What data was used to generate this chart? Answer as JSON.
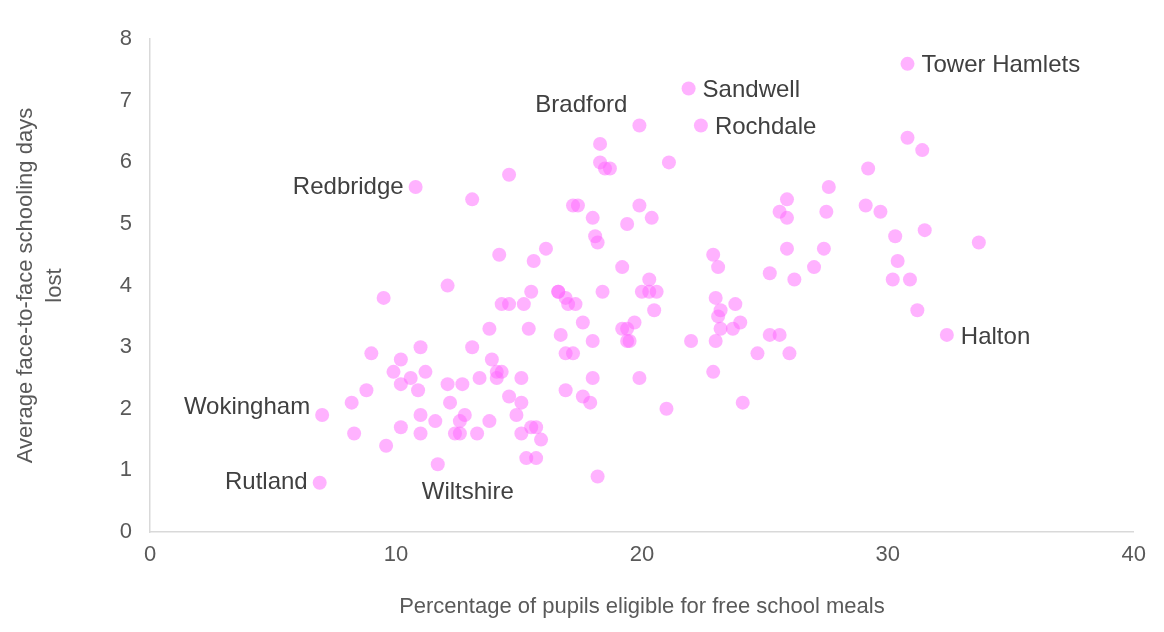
{
  "chart_data": {
    "type": "scatter",
    "xlabel": "Percentage of pupils eligible for free school meals",
    "ylabel": "Average face-to-face schooling days lost",
    "xlim": [
      0,
      40
    ],
    "xticks": [
      0,
      10,
      20,
      30,
      40
    ],
    "ylim": [
      0,
      8
    ],
    "yticks": [
      0,
      1,
      2,
      3,
      4,
      5,
      6,
      7,
      8
    ],
    "grid": false,
    "legend": false,
    "marker": "circle",
    "series": [
      {
        "color": "#ff66ff",
        "x": [
          30.8,
          21.9,
          19.9,
          22.4,
          10.8,
          32.4,
          7.0,
          6.9,
          11.7,
          18.3,
          18.3,
          18.5,
          18.7,
          21.1,
          14.6,
          13.1,
          17.2,
          17.4,
          19.9,
          18.0,
          20.4,
          19.4,
          16.1,
          14.2,
          18.1,
          18.2,
          15.6,
          19.2,
          20.3,
          16.6,
          16.6,
          18.4,
          20.0,
          20.3,
          20.6,
          9.5,
          16.9,
          14.3,
          14.6,
          15.2,
          17.0,
          17.3,
          12.1,
          15.5,
          20.5,
          17.6,
          19.7,
          13.8,
          15.4,
          19.2,
          19.4,
          19.4,
          19.5,
          16.7,
          18.0,
          11.0,
          13.1,
          9.0,
          16.9,
          17.2,
          10.2,
          13.9,
          9.9,
          11.2,
          14.1,
          14.3,
          10.6,
          12.1,
          12.7,
          10.2,
          13.4,
          14.1,
          15.1,
          18.0,
          19.9,
          8.8,
          10.9,
          16.9,
          17.6,
          14.6,
          8.2,
          12.2,
          15.1,
          17.9,
          11.0,
          12.8,
          14.9,
          21.0,
          11.6,
          12.6,
          13.8,
          10.2,
          15.5,
          15.7,
          8.3,
          11.0,
          12.4,
          12.6,
          13.3,
          15.1,
          15.9,
          9.6,
          15.3,
          15.7,
          18.2,
          30.8,
          31.4,
          29.2,
          27.6,
          25.9,
          29.1,
          29.7,
          27.5,
          25.6,
          25.9,
          31.5,
          30.3,
          33.7,
          22.9,
          25.9,
          27.4,
          30.4,
          23.1,
          27.0,
          25.2,
          26.2,
          30.2,
          30.9,
          23.0,
          23.8,
          23.2,
          31.2,
          23.1,
          24.0,
          23.2,
          23.7,
          25.2,
          25.6,
          22.0,
          23.0,
          24.7,
          26.0,
          22.9,
          24.1
        ],
        "values": [
          7.6,
          7.2,
          6.6,
          6.6,
          5.6,
          3.2,
          1.9,
          0.8,
          1.1,
          6.3,
          6.0,
          5.9,
          5.9,
          6.0,
          5.8,
          5.4,
          5.3,
          5.3,
          5.3,
          5.1,
          5.1,
          5.0,
          4.6,
          4.5,
          4.8,
          4.7,
          4.4,
          4.3,
          4.1,
          3.9,
          3.9,
          3.9,
          3.9,
          3.9,
          3.9,
          3.8,
          3.8,
          3.7,
          3.7,
          3.7,
          3.7,
          3.7,
          4.0,
          3.9,
          3.6,
          3.4,
          3.4,
          3.3,
          3.3,
          3.3,
          3.3,
          3.1,
          3.1,
          3.2,
          3.1,
          3.0,
          3.0,
          2.9,
          2.9,
          2.9,
          2.8,
          2.8,
          2.6,
          2.6,
          2.6,
          2.6,
          2.5,
          2.4,
          2.4,
          2.4,
          2.5,
          2.5,
          2.5,
          2.5,
          2.5,
          2.3,
          2.3,
          2.3,
          2.2,
          2.2,
          2.1,
          2.1,
          2.1,
          2.1,
          1.9,
          1.9,
          1.9,
          2.0,
          1.8,
          1.8,
          1.8,
          1.7,
          1.7,
          1.7,
          1.6,
          1.6,
          1.6,
          1.6,
          1.6,
          1.6,
          1.5,
          1.4,
          1.2,
          1.2,
          0.9,
          6.4,
          6.2,
          5.9,
          5.6,
          5.4,
          5.3,
          5.2,
          5.2,
          5.2,
          5.1,
          4.9,
          4.8,
          4.7,
          4.5,
          4.6,
          4.6,
          4.4,
          4.3,
          4.3,
          4.2,
          4.1,
          4.1,
          4.1,
          3.8,
          3.7,
          3.6,
          3.6,
          3.5,
          3.4,
          3.3,
          3.3,
          3.2,
          3.2,
          3.1,
          3.1,
          2.9,
          2.9,
          2.6,
          2.1
        ]
      }
    ],
    "annotations": [
      {
        "text": "Tower Hamlets",
        "x": 30.8,
        "y": 7.6
      },
      {
        "text": "Sandwell",
        "x": 21.9,
        "y": 7.2
      },
      {
        "text": "Bradford",
        "x": 19.9,
        "y": 6.6
      },
      {
        "text": "Rochdale",
        "x": 22.4,
        "y": 6.6
      },
      {
        "text": "Redbridge",
        "x": 10.8,
        "y": 5.6
      },
      {
        "text": "Halton",
        "x": 32.4,
        "y": 3.2
      },
      {
        "text": "Wokingham",
        "x": 7.0,
        "y": 1.9
      },
      {
        "text": "Rutland",
        "x": 6.9,
        "y": 0.8
      },
      {
        "text": "Wiltshire",
        "x": 11.7,
        "y": 1.1
      }
    ]
  }
}
